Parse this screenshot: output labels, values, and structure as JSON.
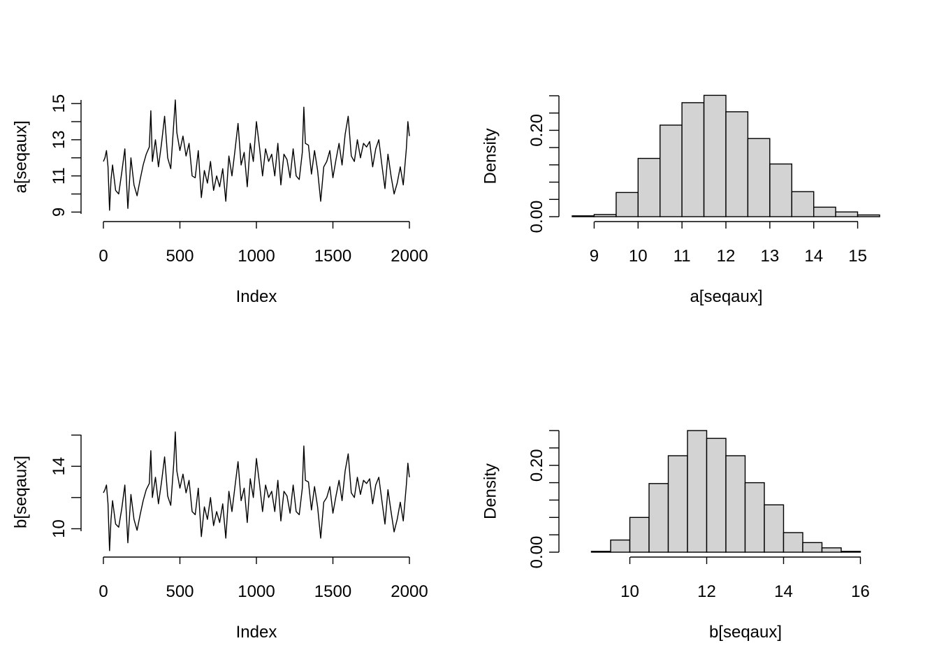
{
  "chart_data": [
    {
      "type": "line",
      "xlabel": "Index",
      "ylabel": "a[seqaux]",
      "xlim": [
        0,
        2000
      ],
      "ylim": [
        8.9,
        15.2
      ],
      "x_ticks": [
        0,
        500,
        1000,
        1500,
        2000
      ],
      "y_ticks": [
        9,
        10,
        11,
        12,
        13,
        14,
        15
      ],
      "y_tick_labels": [
        "9",
        "",
        "11",
        "",
        "13",
        "",
        "15"
      ],
      "series": [
        {
          "x": [
            0,
            10,
            20,
            30,
            40,
            50,
            60,
            80,
            100,
            120,
            140,
            160,
            180,
            200,
            220,
            240,
            260,
            280,
            300,
            310,
            320,
            340,
            360,
            380,
            400,
            420,
            440,
            460,
            470,
            480,
            500,
            520,
            540,
            560,
            580,
            600,
            620,
            640,
            660,
            680,
            700,
            720,
            740,
            760,
            780,
            800,
            820,
            840,
            860,
            880,
            900,
            920,
            940,
            960,
            980,
            1000,
            1020,
            1040,
            1060,
            1080,
            1100,
            1120,
            1140,
            1160,
            1180,
            1200,
            1220,
            1240,
            1260,
            1280,
            1300,
            1310,
            1320,
            1340,
            1360,
            1380,
            1400,
            1420,
            1440,
            1460,
            1480,
            1500,
            1520,
            1540,
            1560,
            1580,
            1600,
            1620,
            1640,
            1660,
            1680,
            1700,
            1720,
            1740,
            1760,
            1780,
            1800,
            1820,
            1840,
            1860,
            1880,
            1900,
            1920,
            1940,
            1960,
            1980,
            1990,
            2000
          ],
          "y": [
            11.8,
            12.0,
            12.4,
            11.5,
            9.1,
            10.8,
            11.6,
            10.2,
            10.0,
            11.2,
            12.5,
            9.2,
            12.0,
            10.5,
            9.9,
            10.8,
            11.6,
            12.2,
            12.6,
            14.6,
            11.8,
            13.0,
            11.5,
            12.8,
            14.3,
            12.0,
            11.4,
            13.9,
            15.2,
            13.4,
            12.4,
            13.2,
            12.1,
            12.8,
            11.0,
            10.9,
            12.4,
            9.8,
            11.3,
            10.6,
            11.8,
            10.2,
            11.0,
            10.4,
            11.4,
            9.6,
            12.1,
            11.0,
            12.4,
            13.9,
            11.6,
            12.3,
            10.4,
            12.8,
            11.8,
            14.0,
            12.6,
            11.0,
            12.5,
            11.8,
            12.2,
            11.0,
            12.8,
            10.5,
            12.2,
            11.9,
            10.9,
            12.5,
            11.0,
            10.8,
            12.3,
            14.8,
            12.8,
            12.7,
            11.1,
            12.4,
            11.3,
            9.6,
            11.5,
            11.8,
            12.4,
            10.9,
            11.9,
            12.8,
            11.6,
            13.3,
            14.3,
            12.1,
            11.8,
            13.0,
            12.0,
            12.8,
            12.6,
            12.9,
            11.5,
            12.5,
            13.0,
            11.6,
            10.3,
            12.2,
            11.0,
            10.0,
            10.6,
            11.5,
            10.5,
            12.5,
            14.0,
            13.2
          ]
        }
      ]
    },
    {
      "type": "bar",
      "xlabel": "a[seqaux]",
      "ylabel": "Density",
      "xlim": [
        8.5,
        15.5
      ],
      "ylim": [
        0,
        0.28
      ],
      "x_ticks": [
        9,
        10,
        11,
        12,
        13,
        14,
        15
      ],
      "y_ticks": [
        0,
        0.04,
        0.08,
        0.12,
        0.16,
        0.2,
        0.24,
        0.28
      ],
      "y_tick_labels": [
        "0.00",
        "",
        "",
        "",
        "",
        "0.20",
        "",
        ""
      ],
      "bins": [
        [
          8.5,
          9.0
        ],
        [
          9.0,
          9.5
        ],
        [
          9.5,
          10.0
        ],
        [
          10.0,
          10.5
        ],
        [
          10.5,
          11.0
        ],
        [
          11.0,
          11.5
        ],
        [
          11.5,
          12.0
        ],
        [
          12.0,
          12.5
        ],
        [
          12.5,
          13.0
        ],
        [
          13.0,
          13.5
        ],
        [
          13.5,
          14.0
        ],
        [
          14.0,
          14.5
        ],
        [
          14.5,
          15.0
        ],
        [
          15.0,
          15.5
        ]
      ],
      "values": [
        0.002,
        0.005,
        0.056,
        0.135,
        0.212,
        0.264,
        0.281,
        0.243,
        0.181,
        0.122,
        0.058,
        0.022,
        0.011,
        0.004
      ]
    },
    {
      "type": "line",
      "xlabel": "Index",
      "ylabel": "b[seqaux]",
      "xlim": [
        0,
        2000
      ],
      "ylim": [
        8.5,
        16.2
      ],
      "x_ticks": [
        0,
        500,
        1000,
        1500,
        2000
      ],
      "y_ticks": [
        10,
        12,
        14,
        16
      ],
      "y_tick_labels": [
        "10",
        "",
        "14",
        ""
      ],
      "series": [
        {
          "x": [
            0,
            10,
            20,
            30,
            40,
            50,
            60,
            80,
            100,
            120,
            140,
            160,
            180,
            200,
            220,
            240,
            260,
            280,
            300,
            310,
            320,
            340,
            360,
            380,
            400,
            420,
            440,
            460,
            470,
            480,
            500,
            520,
            540,
            560,
            580,
            600,
            620,
            640,
            660,
            680,
            700,
            720,
            740,
            760,
            780,
            800,
            820,
            840,
            860,
            880,
            900,
            920,
            940,
            960,
            980,
            1000,
            1020,
            1040,
            1060,
            1080,
            1100,
            1120,
            1140,
            1160,
            1180,
            1200,
            1220,
            1240,
            1260,
            1280,
            1300,
            1310,
            1320,
            1340,
            1360,
            1380,
            1400,
            1420,
            1440,
            1460,
            1480,
            1500,
            1520,
            1540,
            1560,
            1580,
            1600,
            1620,
            1640,
            1660,
            1680,
            1700,
            1720,
            1740,
            1760,
            1780,
            1800,
            1820,
            1840,
            1860,
            1880,
            1900,
            1920,
            1940,
            1960,
            1980,
            1990,
            2000
          ],
          "y": [
            12.3,
            12.5,
            12.8,
            11.6,
            8.6,
            10.6,
            11.8,
            10.3,
            10.1,
            11.3,
            12.8,
            9.1,
            12.2,
            10.6,
            9.9,
            10.9,
            11.8,
            12.5,
            12.9,
            15.0,
            12.0,
            13.3,
            11.6,
            13.0,
            14.6,
            12.1,
            11.5,
            14.2,
            16.2,
            13.7,
            12.6,
            13.5,
            12.3,
            13.1,
            11.1,
            10.9,
            12.6,
            9.5,
            11.4,
            10.6,
            12.0,
            10.2,
            11.1,
            10.4,
            11.6,
            9.4,
            12.4,
            11.1,
            12.7,
            14.3,
            11.8,
            12.6,
            10.4,
            13.2,
            12.0,
            14.5,
            12.9,
            11.1,
            12.8,
            12.0,
            12.4,
            11.1,
            13.1,
            10.5,
            12.4,
            12.1,
            11.0,
            12.8,
            11.1,
            10.9,
            12.6,
            15.3,
            13.1,
            13.0,
            11.2,
            12.7,
            11.4,
            9.4,
            11.7,
            12.0,
            12.7,
            11.0,
            12.1,
            13.1,
            11.8,
            13.7,
            14.8,
            12.3,
            12.0,
            13.3,
            12.2,
            13.1,
            12.9,
            13.2,
            11.6,
            12.8,
            13.3,
            11.8,
            10.3,
            12.5,
            11.1,
            9.8,
            10.6,
            11.7,
            10.5,
            12.8,
            14.2,
            13.3
          ]
        }
      ]
    },
    {
      "type": "bar",
      "xlabel": "b[seqaux]",
      "ylabel": "Density",
      "xlim": [
        8.5,
        16.5
      ],
      "ylim": [
        0,
        0.28
      ],
      "x_ticks": [
        10,
        12,
        14,
        16
      ],
      "y_ticks": [
        0,
        0.04,
        0.08,
        0.12,
        0.16,
        0.2,
        0.24,
        0.28
      ],
      "y_tick_labels": [
        "0.00",
        "",
        "",
        "",
        "",
        "0.20",
        "",
        ""
      ],
      "bins": [
        [
          9.0,
          9.5
        ],
        [
          9.5,
          10.0
        ],
        [
          10.0,
          10.5
        ],
        [
          10.5,
          11.0
        ],
        [
          11.0,
          11.5
        ],
        [
          11.5,
          12.0
        ],
        [
          12.0,
          12.5
        ],
        [
          12.5,
          13.0
        ],
        [
          13.0,
          13.5
        ],
        [
          13.5,
          14.0
        ],
        [
          14.0,
          14.5
        ],
        [
          14.5,
          15.0
        ],
        [
          15.0,
          15.5
        ],
        [
          15.5,
          16.0
        ]
      ],
      "values": [
        0.002,
        0.028,
        0.08,
        0.158,
        0.222,
        0.28,
        0.262,
        0.222,
        0.16,
        0.109,
        0.045,
        0.022,
        0.01,
        0.002
      ]
    }
  ]
}
